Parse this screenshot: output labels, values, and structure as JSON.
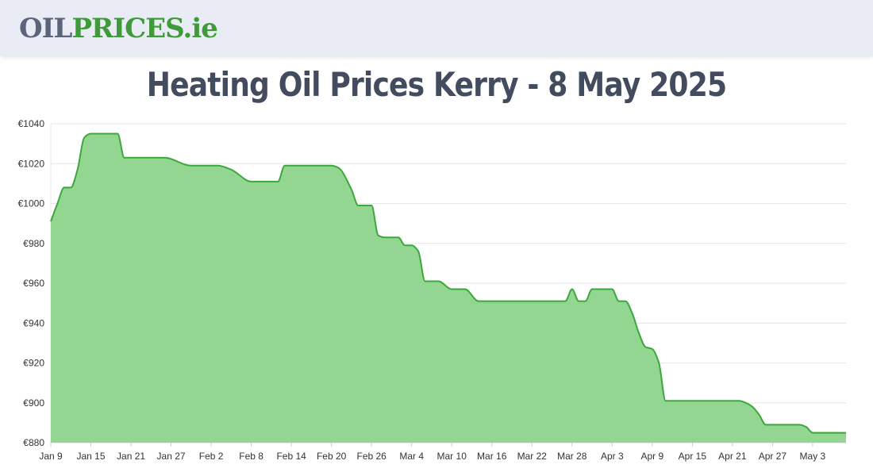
{
  "header": {
    "logo_oil": "OIL",
    "logo_prices": "PRICES",
    "logo_ie": ".ie"
  },
  "colors": {
    "fill": "#93d692",
    "line": "#3aa83a",
    "grid": "#e6e6e6",
    "title": "#434c5e"
  },
  "chart_data": {
    "type": "area",
    "title": "Heating Oil Prices Kerry - 8 May 2025",
    "xlabel": "",
    "ylabel": "",
    "ylim": [
      880,
      1040
    ],
    "yticks": [
      880,
      900,
      920,
      940,
      960,
      980,
      1000,
      1020,
      1040
    ],
    "ytick_labels": [
      "€880",
      "€900",
      "€920",
      "€940",
      "€960",
      "€980",
      "€1000",
      "€1020",
      "€1040"
    ],
    "xlim": [
      "2025-01-09",
      "2025-05-08"
    ],
    "xticks": [
      "2025-01-09",
      "2025-01-15",
      "2025-01-21",
      "2025-01-27",
      "2025-02-02",
      "2025-02-08",
      "2025-02-14",
      "2025-02-20",
      "2025-02-26",
      "2025-03-04",
      "2025-03-10",
      "2025-03-16",
      "2025-03-22",
      "2025-03-28",
      "2025-04-03",
      "2025-04-09",
      "2025-04-15",
      "2025-04-21",
      "2025-04-27",
      "2025-05-03"
    ],
    "xtick_labels": [
      "Jan 9",
      "Jan 15",
      "Jan 21",
      "Jan 27",
      "Feb 2",
      "Feb 8",
      "Feb 14",
      "Feb 20",
      "Feb 26",
      "Mar 4",
      "Mar 10",
      "Mar 16",
      "Mar 22",
      "Mar 28",
      "Apr 3",
      "Apr 9",
      "Apr 15",
      "Apr 21",
      "Apr 27",
      "May 3"
    ],
    "grid": true,
    "legend": "none",
    "series": [
      {
        "x": [
          "2025-01-09",
          "2025-01-10",
          "2025-01-11",
          "2025-01-12",
          "2025-01-13",
          "2025-01-14",
          "2025-01-15",
          "2025-01-18",
          "2025-01-19",
          "2025-01-20",
          "2025-01-25",
          "2025-01-26",
          "2025-01-30",
          "2025-02-02",
          "2025-02-03",
          "2025-02-05",
          "2025-02-08",
          "2025-02-09",
          "2025-02-12",
          "2025-02-13",
          "2025-02-20",
          "2025-02-21",
          "2025-02-23",
          "2025-02-24",
          "2025-02-26",
          "2025-02-27",
          "2025-02-28",
          "2025-03-02",
          "2025-03-03",
          "2025-03-04",
          "2025-03-05",
          "2025-03-06",
          "2025-03-07",
          "2025-03-08",
          "2025-03-10",
          "2025-03-11",
          "2025-03-12",
          "2025-03-14",
          "2025-03-15",
          "2025-03-25",
          "2025-03-27",
          "2025-03-28",
          "2025-03-29",
          "2025-03-30",
          "2025-03-31",
          "2025-04-01",
          "2025-04-02",
          "2025-04-03",
          "2025-04-04",
          "2025-04-05",
          "2025-04-06",
          "2025-04-07",
          "2025-04-08",
          "2025-04-09",
          "2025-04-10",
          "2025-04-11",
          "2025-04-12",
          "2025-04-15",
          "2025-04-21",
          "2025-04-22",
          "2025-04-23",
          "2025-04-24",
          "2025-04-25",
          "2025-04-26",
          "2025-04-27",
          "2025-04-29",
          "2025-04-30",
          "2025-05-01",
          "2025-05-02",
          "2025-05-03",
          "2025-05-08"
        ],
        "values": [
          991,
          1000,
          1008,
          1008,
          1017,
          1033,
          1035,
          1035,
          1035,
          1023,
          1023,
          1023,
          1019,
          1019,
          1019,
          1017,
          1011,
          1011,
          1011,
          1019,
          1019,
          1018,
          1007,
          999,
          999,
          984,
          983,
          983,
          979,
          979,
          976,
          961,
          961,
          961,
          957,
          957,
          957,
          951,
          951,
          951,
          951,
          957,
          951,
          951,
          957,
          957,
          957,
          957,
          951,
          951,
          945,
          935,
          928,
          927,
          920,
          901,
          901,
          901,
          901,
          901,
          900,
          898,
          894,
          889,
          889,
          889,
          889,
          889,
          888,
          885,
          885
        ]
      }
    ]
  }
}
